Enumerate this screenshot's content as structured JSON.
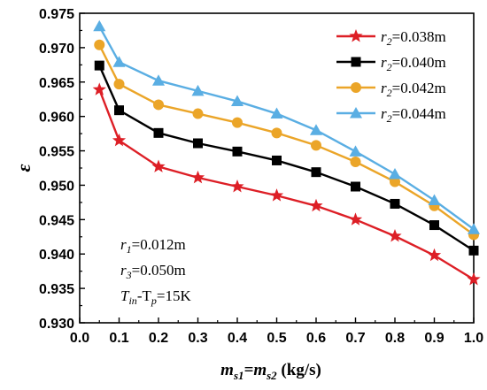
{
  "chart_data": {
    "type": "line",
    "xlabel_main": "m",
    "xlabel_sub1": "s1",
    "xlabel_eq": "=m",
    "xlabel_sub2": "s2",
    "xlabel_unit": " (kg/s)",
    "ylabel": "ε",
    "xlim": [
      0.0,
      1.0
    ],
    "ylim": [
      0.93,
      0.975
    ],
    "xticks": [
      0.0,
      0.1,
      0.2,
      0.3,
      0.4,
      0.5,
      0.6,
      0.7,
      0.8,
      0.9,
      1.0
    ],
    "yticks": [
      0.93,
      0.935,
      0.94,
      0.945,
      0.95,
      0.955,
      0.96,
      0.965,
      0.97,
      0.975
    ],
    "xtick_labels": [
      "0.0",
      "0.1",
      "0.2",
      "0.3",
      "0.4",
      "0.5",
      "0.6",
      "0.7",
      "0.8",
      "0.9",
      "1.0"
    ],
    "ytick_labels": [
      "0.930",
      "0.935",
      "0.940",
      "0.945",
      "0.950",
      "0.955",
      "0.960",
      "0.965",
      "0.970",
      "0.975"
    ],
    "x": [
      0.05,
      0.1,
      0.2,
      0.3,
      0.4,
      0.5,
      0.6,
      0.7,
      0.8,
      0.9,
      1.0
    ],
    "grid": false,
    "legend_position": "top-right",
    "series": [
      {
        "name": "r2=0.038m",
        "label_var": "r",
        "label_sub": "2",
        "label_val": "=0.038m",
        "color": "#dd1f26",
        "marker": "star",
        "values": [
          0.9639,
          0.9565,
          0.9527,
          0.9511,
          0.9498,
          0.9485,
          0.947,
          0.945,
          0.9426,
          0.9398,
          0.9363
        ]
      },
      {
        "name": "r2=0.040m",
        "label_var": "r",
        "label_sub": "2",
        "label_val": "=0.040m",
        "color": "#000000",
        "marker": "square",
        "values": [
          0.9674,
          0.9609,
          0.9576,
          0.9561,
          0.9549,
          0.9536,
          0.9519,
          0.9498,
          0.9473,
          0.9442,
          0.9405
        ]
      },
      {
        "name": "r2=0.042m",
        "label_var": "r",
        "label_sub": "2",
        "label_val": "=0.042m",
        "color": "#eba528",
        "marker": "circle",
        "values": [
          0.9704,
          0.9647,
          0.9617,
          0.9604,
          0.9591,
          0.9576,
          0.9558,
          0.9534,
          0.9505,
          0.947,
          0.9428
        ]
      },
      {
        "name": "r2=0.044m",
        "label_var": "r",
        "label_sub": "2",
        "label_val": "=0.044m",
        "color": "#5aaee3",
        "marker": "triangle",
        "values": [
          0.9731,
          0.9679,
          0.9652,
          0.9637,
          0.9622,
          0.9604,
          0.958,
          0.9549,
          0.9516,
          0.9478,
          0.9436
        ]
      }
    ],
    "annotations": [
      {
        "var": "r",
        "sub": "1",
        "val": "=0.012m"
      },
      {
        "var": "r",
        "sub": "3",
        "val": "=0.050m"
      },
      {
        "var": "T",
        "sub": "in",
        "mid": "-T",
        "sub2": "p",
        "val": "=15K"
      }
    ]
  }
}
